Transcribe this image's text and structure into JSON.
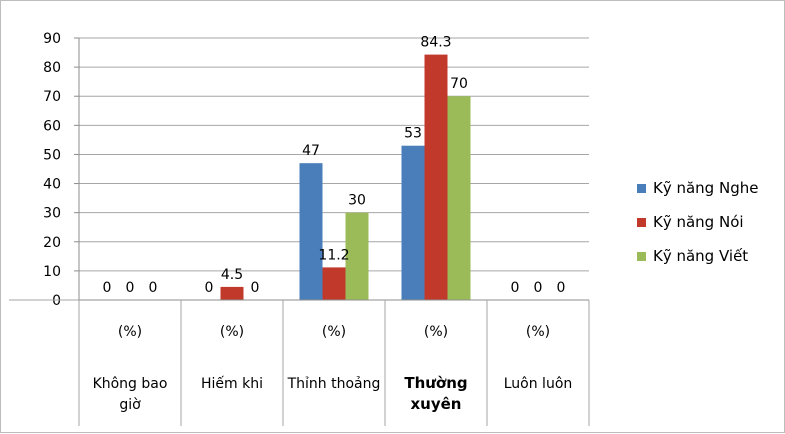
{
  "chart_data": {
    "type": "bar",
    "categories": [
      {
        "unit": "(%)",
        "label": "Không bao giờ"
      },
      {
        "unit": "(%)",
        "label": "Hiếm khi"
      },
      {
        "unit": "(%)",
        "label": "Thỉnh thoảng"
      },
      {
        "unit": "(%)",
        "label": "Thường xuyên"
      },
      {
        "unit": "(%)",
        "label": "Luôn luôn"
      }
    ],
    "series": [
      {
        "name": "Kỹ năng Nghe",
        "color": "#4a7ebb",
        "values": [
          0,
          0,
          47,
          53,
          0
        ]
      },
      {
        "name": "Kỹ năng Nói",
        "color": "#c0392b",
        "values": [
          0,
          4.5,
          11.2,
          84.3,
          0
        ]
      },
      {
        "name": "Kỹ năng Viết",
        "color": "#9bbb59",
        "values": [
          0,
          0,
          30,
          70,
          0
        ]
      }
    ],
    "ylim": [
      0,
      90
    ],
    "yticks": [
      0,
      10,
      20,
      30,
      40,
      50,
      60,
      70,
      80,
      90
    ],
    "grid": true,
    "legend_position": "right"
  }
}
